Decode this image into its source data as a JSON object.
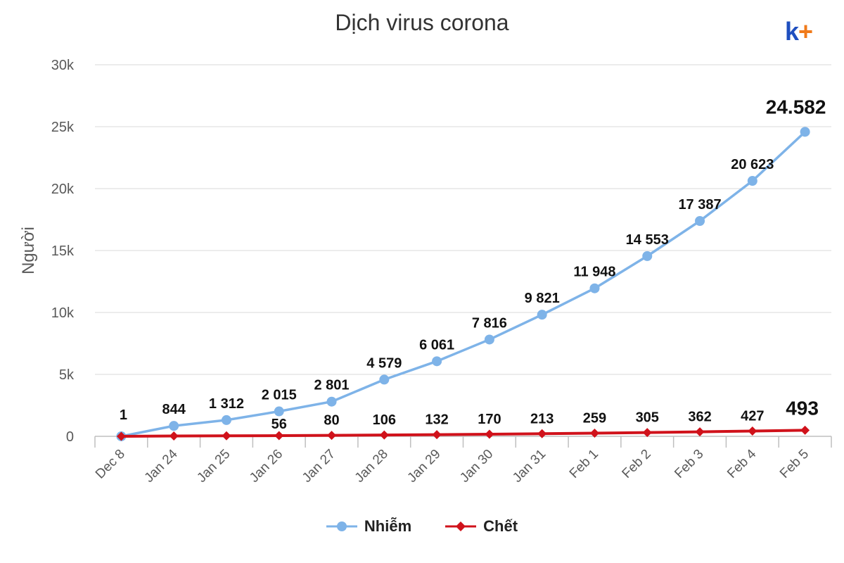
{
  "chart_data": {
    "type": "line",
    "title": "Dịch virus corona",
    "ylabel": "Người",
    "xlabel": "",
    "ylim": [
      0,
      30000
    ],
    "yticks": [
      "0",
      "5k",
      "10k",
      "15k",
      "20k",
      "25k",
      "30k"
    ],
    "ytick_values": [
      0,
      5000,
      10000,
      15000,
      20000,
      25000,
      30000
    ],
    "categories": [
      "Dec 8",
      "Jan 24",
      "Jan 25",
      "Jan 26",
      "Jan 27",
      "Jan 28",
      "Jan 29",
      "Jan 30",
      "Jan 31",
      "Feb 1",
      "Feb 2",
      "Feb 3",
      "Feb 4",
      "Feb 5"
    ],
    "grid": true,
    "legend_position": "bottom",
    "series": [
      {
        "name": "Nhiễm",
        "color": "#7eb3e8",
        "marker": "circle",
        "values": [
          1,
          844,
          1312,
          2015,
          2801,
          4579,
          6061,
          7816,
          9821,
          11948,
          14553,
          17387,
          20623,
          24582
        ],
        "labels": [
          "1",
          "844",
          "1 312",
          "2 015",
          "2 801",
          "4 579",
          "6 061",
          "7 816",
          "9 821",
          "11 948",
          "14 553",
          "17 387",
          "20 623",
          "24.582"
        ]
      },
      {
        "name": "Chết",
        "color": "#d0121b",
        "marker": "diamond",
        "values": [
          0,
          25,
          41,
          56,
          80,
          106,
          132,
          170,
          213,
          259,
          305,
          362,
          427,
          493
        ],
        "labels": [
          "",
          "",
          "",
          "56",
          "80",
          "106",
          "132",
          "170",
          "213",
          "259",
          "305",
          "362",
          "427",
          "493"
        ]
      }
    ]
  },
  "logo": {
    "k": "k",
    "plus": "+"
  }
}
